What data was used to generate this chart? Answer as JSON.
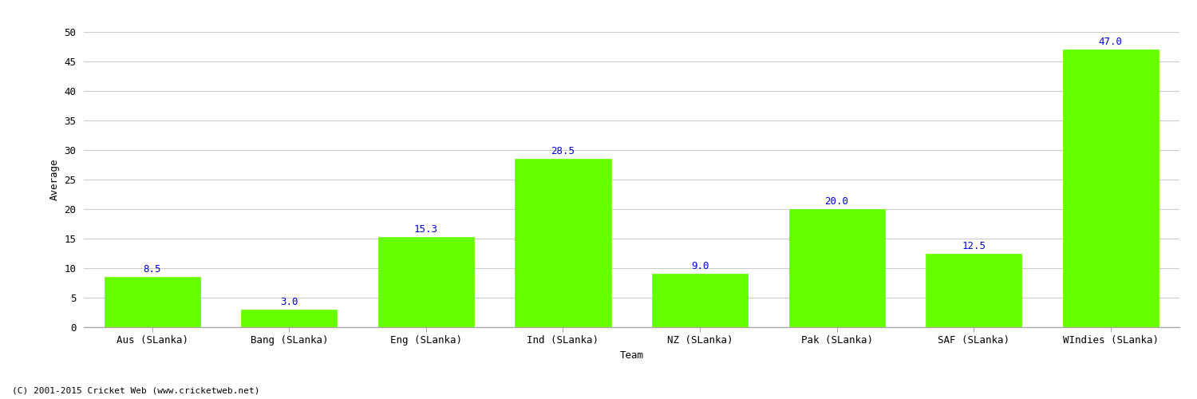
{
  "categories": [
    "Aus (SLanka)",
    "Bang (SLanka)",
    "Eng (SLanka)",
    "Ind (SLanka)",
    "NZ (SLanka)",
    "Pak (SLanka)",
    "SAF (SLanka)",
    "WIndies (SLanka)"
  ],
  "values": [
    8.5,
    3.0,
    15.3,
    28.5,
    9.0,
    20.0,
    12.5,
    47.0
  ],
  "bar_color": "#66FF00",
  "label_color": "#0000CC",
  "xlabel": "Team",
  "ylabel": "Average",
  "ylim": [
    0,
    50
  ],
  "yticks": [
    0,
    5,
    10,
    15,
    20,
    25,
    30,
    35,
    40,
    45,
    50
  ],
  "background_color": "#FFFFFF",
  "grid_color": "#CCCCCC",
  "footer_text": "(C) 2001-2015 Cricket Web (www.cricketweb.net)",
  "label_fontsize": 9,
  "axis_fontsize": 9,
  "tick_fontsize": 9,
  "bar_edge_color": "#66FF00",
  "bar_width": 0.7
}
